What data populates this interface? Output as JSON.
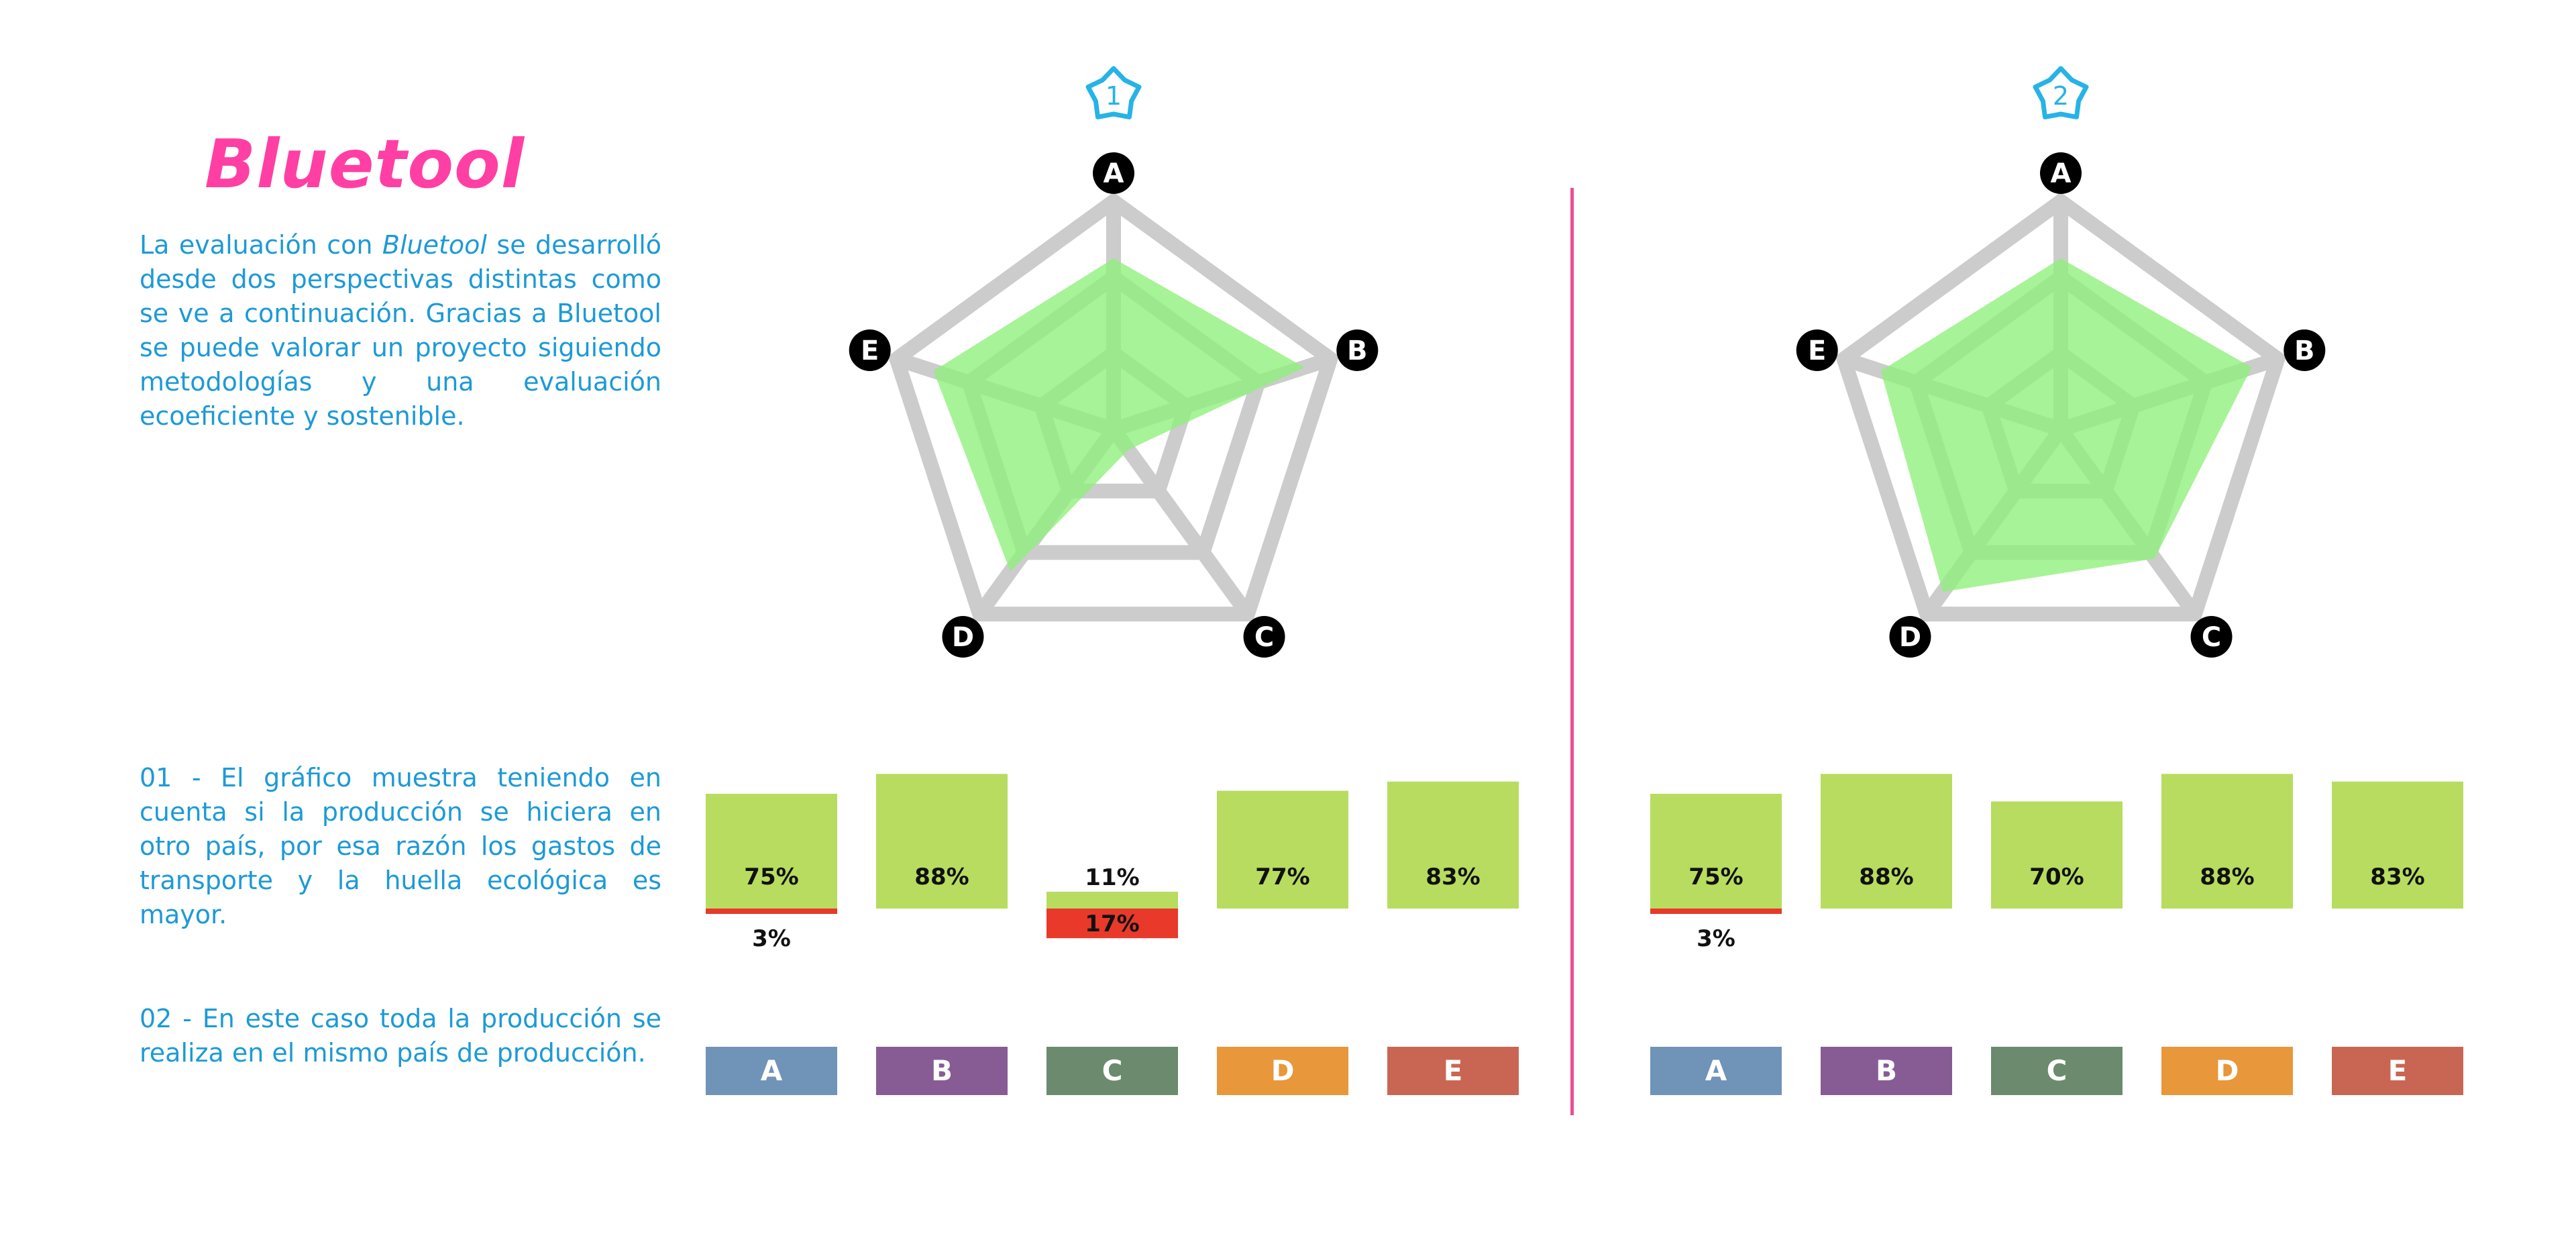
{
  "title": "Bluetool",
  "intro": {
    "before": "La evaluación con ",
    "em": "Bluetool",
    "after": " se desarrolló desde dos perspectivas distintas como se ve a continuación. Gracias a Bluetool se puede valorar un proyecto siguiendo metodologías y una evaluación ecoeficiente y sostenible."
  },
  "note1": "01 - El gráfico muestra teniendo en cuenta si la producción se hiciera en otro país, por esa razón los gastos de transporte y la huella ecológica es mayor.",
  "note2": "02 - En este caso toda la producción se realiza en el mismo país de producción.",
  "colors": {
    "accent_pink": "#ff3fa3",
    "text_blue": "#1d9ad6",
    "radar_fill": "#8ef07a",
    "radar_grid": "#cccccc",
    "bar_green": "#b7dc5f",
    "bar_red": "#e8392a",
    "badge_icon": "#27b3e6",
    "categories": [
      "#7093b8",
      "#875c95",
      "#6c8a6e",
      "#e8973b",
      "#c96653"
    ]
  },
  "chart_data": [
    {
      "type": "radar",
      "badge": "1",
      "axes": [
        "A",
        "B",
        "C",
        "D",
        "E"
      ],
      "series": [
        {
          "values": [
            0.75,
            0.88,
            0.11,
            0.77,
            0.83
          ]
        }
      ],
      "rlim": [
        0,
        1
      ],
      "rings": 3,
      "bars": {
        "type": "bar",
        "categories": [
          "A",
          "B",
          "C",
          "D",
          "E"
        ],
        "positive_values": [
          75,
          88,
          11,
          77,
          83
        ],
        "positive_labels": [
          "75%",
          "88%",
          "11%",
          "77%",
          "83%"
        ],
        "negative_values": [
          3,
          0,
          17,
          0,
          0
        ],
        "negative_labels": [
          "3%",
          "",
          "17%",
          "",
          ""
        ]
      }
    },
    {
      "type": "radar",
      "badge": "2",
      "axes": [
        "A",
        "B",
        "C",
        "D",
        "E"
      ],
      "series": [
        {
          "values": [
            0.75,
            0.88,
            0.7,
            0.88,
            0.83
          ]
        }
      ],
      "rlim": [
        0,
        1
      ],
      "rings": 3,
      "bars": {
        "type": "bar",
        "categories": [
          "A",
          "B",
          "C",
          "D",
          "E"
        ],
        "positive_values": [
          75,
          88,
          70,
          88,
          83
        ],
        "positive_labels": [
          "75%",
          "88%",
          "70%",
          "88%",
          "83%"
        ],
        "negative_values": [
          3,
          0,
          0,
          0,
          0
        ],
        "negative_labels": [
          "3%",
          "",
          "",
          "",
          ""
        ]
      }
    }
  ]
}
